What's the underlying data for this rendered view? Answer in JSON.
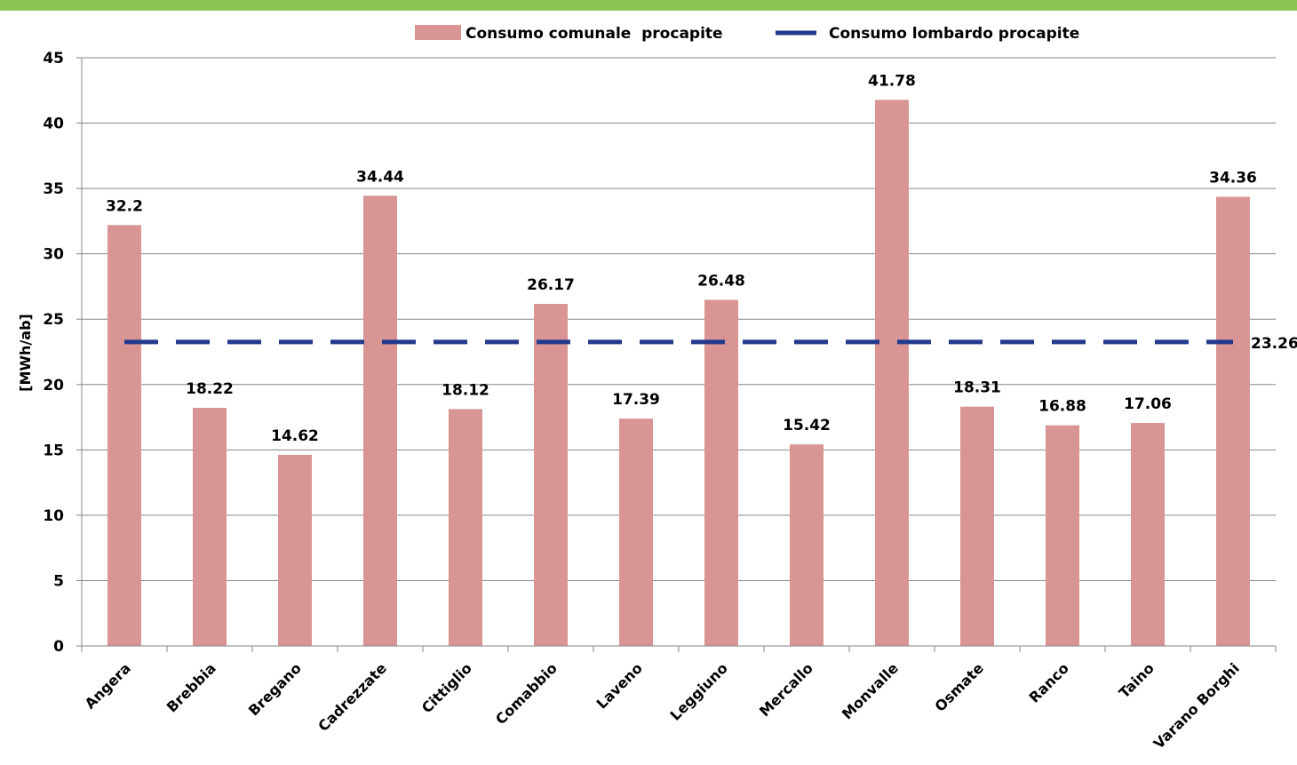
{
  "chart_data": {
    "type": "bar",
    "ylabel": "[MWh/ab]",
    "ylim": [
      0,
      45
    ],
    "yticks": [
      0,
      5,
      10,
      15,
      20,
      25,
      30,
      35,
      40,
      45
    ],
    "grid": true,
    "legend_position": "top",
    "categories": [
      "Angera",
      "Brebbia",
      "Bregano",
      "Cadrezzate",
      "Cittiglio",
      "Comabbio",
      "Laveno",
      "Leggiuno",
      "Mercallo",
      "Monvalle",
      "Osmate",
      "Ranco",
      "Taino",
      "Varano Borghi"
    ],
    "series": [
      {
        "name": "Consumo comunale  procapite",
        "type": "bar",
        "color": "#d99594",
        "values": [
          32.2,
          18.22,
          14.62,
          34.44,
          18.12,
          26.17,
          17.39,
          26.48,
          15.42,
          41.78,
          18.31,
          16.88,
          17.06,
          34.36
        ],
        "labels": [
          "32.2",
          "18.22",
          "14.62",
          "34.44",
          "18.12",
          "26.17",
          "17.39",
          "26.48",
          "15.42",
          "41.78",
          "18.31",
          "16.88",
          "17.06",
          "34.36"
        ]
      },
      {
        "name": "Consumo lombardo procapite",
        "type": "line",
        "style": "dashed",
        "color": "#233a8c",
        "value": 23.26,
        "label": "23.26"
      }
    ]
  },
  "colors": {
    "top_bar": "#8cc652",
    "grid": "#868686"
  }
}
